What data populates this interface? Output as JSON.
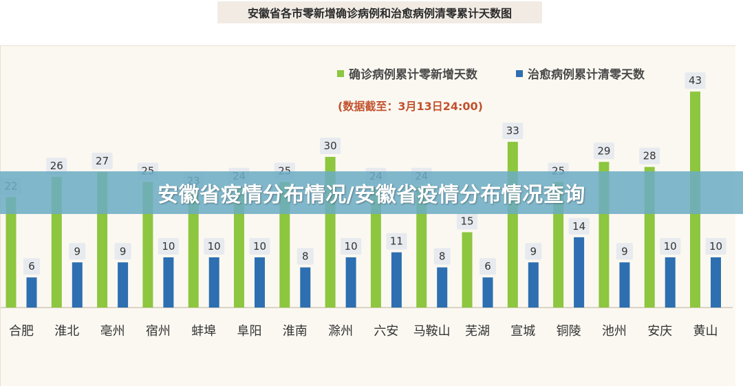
{
  "top_title": "安徽省各市零新增确诊病例和治愈病例清零累计天数图",
  "subtitle": "(数据截至：3月13日24:00)",
  "banner_text": "安徽省疫情分布情况/安徽省疫情分布情况查询",
  "colors": {
    "green": "#8dc63f",
    "blue": "#2d6fb0",
    "label_bg": "#e7eaee",
    "axis": "#cfc7b8"
  },
  "chart_data": {
    "type": "bar",
    "title": "安徽省各市零新增确诊病例和治愈病例清零累计天数图",
    "subtitle": "(数据截至：3月13日24:00)",
    "categories": [
      "合肥",
      "淮北",
      "亳州",
      "宿州",
      "蚌埠",
      "阜阳",
      "淮南",
      "滁州",
      "六安",
      "马鞍山",
      "芜湖",
      "宣城",
      "铜陵",
      "池州",
      "安庆",
      "黄山"
    ],
    "series": [
      {
        "name": "确诊病例累计零新增天数",
        "color": "#8dc63f",
        "values": [
          22,
          26,
          27,
          25,
          23,
          24,
          25,
          30,
          24,
          24,
          15,
          33,
          25,
          29,
          28,
          43
        ]
      },
      {
        "name": "治愈病例累计清零天数",
        "color": "#2d6fb0",
        "values": [
          6,
          9,
          9,
          10,
          10,
          10,
          8,
          10,
          11,
          8,
          6,
          9,
          14,
          9,
          10,
          10
        ]
      }
    ],
    "ylim": [
      0,
      45
    ],
    "grid": false,
    "legend_position": "top-right",
    "xlabel": "",
    "ylabel": ""
  }
}
